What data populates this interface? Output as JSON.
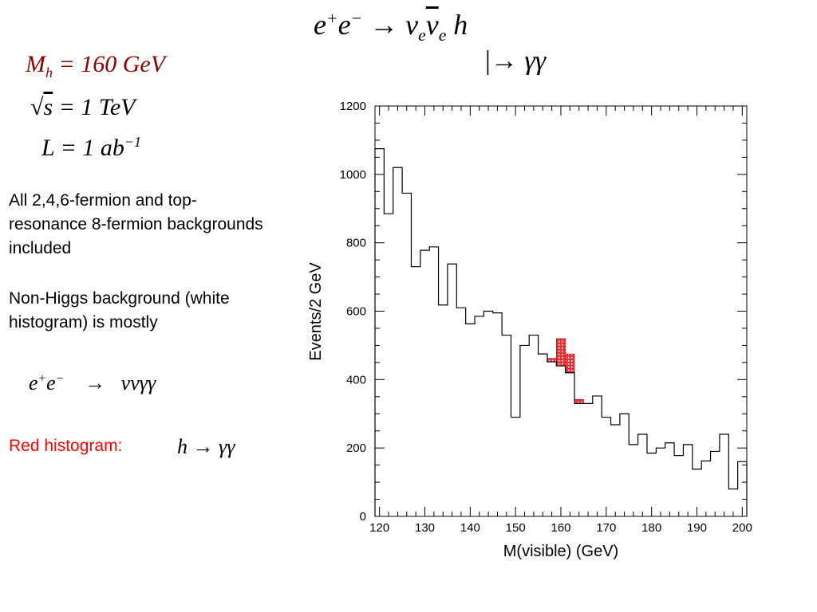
{
  "header": {
    "process_equation": "e⁺e⁻ → ν_e ν̄_e h",
    "decay_equation": "↳ γγ"
  },
  "params": {
    "higgs_mass": "M_h = 160 GeV",
    "sqrt_s": "√s = 1 TeV",
    "luminosity": "L = 1 ab⁻¹"
  },
  "notes": {
    "backgrounds": "All 2,4,6-fermion and top-resonance 8-fermion backgrounds included",
    "non_higgs": "Non-Higgs background (white histogram) is mostly",
    "background_process": "e⁺e⁻ → ννγγ",
    "red_label": "Red histogram:",
    "signal_process": "h → γγ"
  },
  "colors": {
    "signal": "#e8343a",
    "background_line": "#000000",
    "label_red": "#ff0000",
    "param_red": "#8b0000"
  },
  "chart_data": {
    "type": "bar",
    "xlabel": "M(visible) (GeV)",
    "ylabel": "Events/2 GeV",
    "xlim": [
      119,
      201
    ],
    "ylim": [
      0,
      1200
    ],
    "x_ticks": [
      120,
      130,
      140,
      150,
      160,
      170,
      180,
      190,
      200
    ],
    "y_ticks": [
      0,
      200,
      400,
      600,
      800,
      1000,
      1200
    ],
    "grid": false,
    "bin_width": 2,
    "bin_edges": [
      119,
      121,
      123,
      125,
      127,
      129,
      131,
      133,
      135,
      137,
      139,
      141,
      143,
      145,
      147,
      149,
      151,
      153,
      155,
      157,
      159,
      161,
      163,
      165,
      167,
      169,
      171,
      173,
      175,
      177,
      179,
      181,
      183,
      185,
      187,
      189,
      191,
      193,
      195,
      197,
      199,
      201
    ],
    "series": [
      {
        "name": "Non-Higgs background",
        "values": [
          1075,
          885,
          1020,
          945,
          730,
          778,
          788,
          618,
          738,
          610,
          563,
          585,
          600,
          595,
          530,
          290,
          500,
          530,
          475,
          452,
          440,
          420,
          330,
          330,
          352,
          290,
          268,
          300,
          210,
          240,
          185,
          200,
          215,
          178,
          210,
          138,
          162,
          190,
          240,
          80,
          160
        ]
      },
      {
        "name": "h → γγ",
        "values": [
          0,
          0,
          0,
          0,
          0,
          0,
          0,
          0,
          0,
          0,
          0,
          0,
          0,
          0,
          0,
          0,
          0,
          0,
          0,
          10,
          80,
          55,
          12,
          0,
          0,
          0,
          0,
          0,
          0,
          0,
          0,
          0,
          0,
          0,
          0,
          0,
          0,
          0,
          0,
          0,
          0
        ]
      }
    ]
  }
}
